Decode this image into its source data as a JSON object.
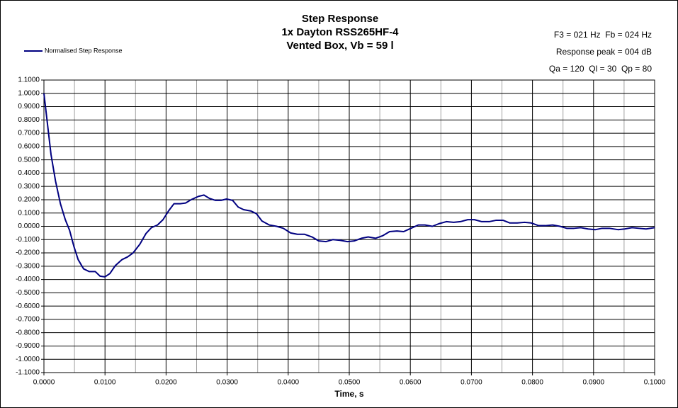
{
  "chart_data": {
    "type": "line",
    "title": "Step Response",
    "subtitle": [
      "1x Dayton RSS265HF-4",
      "Vented Box, Vb = 59 l"
    ],
    "annotations": [
      "F3 = 021 Hz  Fb = 024 Hz",
      "Response peak = 004 dB",
      "Qa = 120  Ql = 30  Qp = 80"
    ],
    "x_label": "Time, s",
    "legend": "top-left",
    "grid": true,
    "xlim": [
      0,
      0.1
    ],
    "ylim": [
      -1.1,
      1.1
    ],
    "xticks": [
      {
        "value": 0,
        "label": "0.0000"
      },
      {
        "value": 0.01,
        "label": "0.0100"
      },
      {
        "value": 0.02,
        "label": "0.0200"
      },
      {
        "value": 0.03,
        "label": "0.0300"
      },
      {
        "value": 0.04,
        "label": "0.0400"
      },
      {
        "value": 0.05,
        "label": "0.0500"
      },
      {
        "value": 0.06,
        "label": "0.0600"
      },
      {
        "value": 0.07,
        "label": "0.0700"
      },
      {
        "value": 0.08,
        "label": "0.0800"
      },
      {
        "value": 0.09,
        "label": "0.0900"
      },
      {
        "value": 0.1,
        "label": "0.1000"
      }
    ],
    "xminorticks": [
      0.005,
      0.015,
      0.025,
      0.035,
      0.045,
      0.055,
      0.065,
      0.075,
      0.085,
      0.095
    ],
    "yticks": [
      {
        "value": 1.1,
        "label": "1.1000"
      },
      {
        "value": 1.0,
        "label": "1.0000"
      },
      {
        "value": 0.9,
        "label": "0.9000"
      },
      {
        "value": 0.8,
        "label": "0.8000"
      },
      {
        "value": 0.7,
        "label": "0.7000"
      },
      {
        "value": 0.6,
        "label": "0.6000"
      },
      {
        "value": 0.5,
        "label": "0.5000"
      },
      {
        "value": 0.4,
        "label": "0.4000"
      },
      {
        "value": 0.3,
        "label": "0.3000"
      },
      {
        "value": 0.2,
        "label": "0.2000"
      },
      {
        "value": 0.1,
        "label": "0.1000"
      },
      {
        "value": 0,
        "label": "0.0000"
      },
      {
        "value": -0.1,
        "label": "-0.1000"
      },
      {
        "value": -0.2,
        "label": "-0.2000"
      },
      {
        "value": -0.3,
        "label": "-0.3000"
      },
      {
        "value": -0.4,
        "label": "-0.4000"
      },
      {
        "value": -0.5,
        "label": "-0.5000"
      },
      {
        "value": -0.6,
        "label": "-0.6000"
      },
      {
        "value": -0.7,
        "label": "-0.7000"
      },
      {
        "value": -0.8,
        "label": "-0.8000"
      },
      {
        "value": -0.9,
        "label": "-0.9000"
      },
      {
        "value": -1.0,
        "label": "-1.0000"
      },
      {
        "value": -1.1,
        "label": "-1.1000"
      }
    ],
    "x": [
      0,
      0.00058,
      0.00116,
      0.0019,
      0.0027,
      0.0035,
      0.0042,
      0.0049,
      0.0056,
      0.0065,
      0.0074,
      0.0084,
      0.0092,
      0.01,
      0.0108,
      0.0117,
      0.0128,
      0.0137,
      0.0146,
      0.0157,
      0.0167,
      0.0176,
      0.0186,
      0.0195,
      0.0204,
      0.0213,
      0.0223,
      0.0232,
      0.0241,
      0.0253,
      0.0262,
      0.0271,
      0.0281,
      0.029,
      0.0299,
      0.0309,
      0.0318,
      0.0327,
      0.0339,
      0.0348,
      0.0357,
      0.0369,
      0.0381,
      0.0392,
      0.0404,
      0.0415,
      0.0427,
      0.0439,
      0.045,
      0.0462,
      0.0473,
      0.0485,
      0.0497,
      0.0508,
      0.052,
      0.0531,
      0.0543,
      0.0555,
      0.0566,
      0.0578,
      0.0589,
      0.0601,
      0.0613,
      0.0624,
      0.0636,
      0.0647,
      0.0659,
      0.0671,
      0.0682,
      0.0694,
      0.0705,
      0.0717,
      0.0729,
      0.074,
      0.0752,
      0.0763,
      0.0775,
      0.0787,
      0.0798,
      0.081,
      0.0821,
      0.0833,
      0.0845,
      0.0856,
      0.0868,
      0.0879,
      0.0891,
      0.0903,
      0.0914,
      0.0926,
      0.094,
      0.0951,
      0.0963,
      0.0974,
      0.0986,
      0.1
    ],
    "series": [
      {
        "name": "Normalised Step Response",
        "color": "#000080",
        "values": [
          1.0,
          0.77,
          0.54,
          0.34,
          0.17,
          0.05,
          -0.03,
          -0.15,
          -0.25,
          -0.32,
          -0.34,
          -0.34,
          -0.375,
          -0.38,
          -0.355,
          -0.295,
          -0.25,
          -0.23,
          -0.2,
          -0.135,
          -0.055,
          -0.01,
          0.01,
          0.05,
          0.115,
          0.17,
          0.17,
          0.175,
          0.2,
          0.225,
          0.235,
          0.21,
          0.195,
          0.195,
          0.205,
          0.195,
          0.145,
          0.125,
          0.115,
          0.095,
          0.04,
          0.01,
          0.0,
          -0.015,
          -0.05,
          -0.06,
          -0.06,
          -0.08,
          -0.11,
          -0.115,
          -0.1,
          -0.105,
          -0.115,
          -0.11,
          -0.09,
          -0.08,
          -0.09,
          -0.07,
          -0.04,
          -0.035,
          -0.04,
          -0.015,
          0.01,
          0.01,
          0.0,
          0.02,
          0.035,
          0.03,
          0.035,
          0.05,
          0.05,
          0.035,
          0.035,
          0.045,
          0.045,
          0.025,
          0.025,
          0.03,
          0.025,
          0.005,
          0.005,
          0.01,
          0.0,
          -0.015,
          -0.015,
          -0.01,
          -0.02,
          -0.025,
          -0.015,
          -0.015,
          -0.025,
          -0.02,
          -0.01,
          -0.015,
          -0.02,
          -0.01
        ]
      }
    ]
  }
}
